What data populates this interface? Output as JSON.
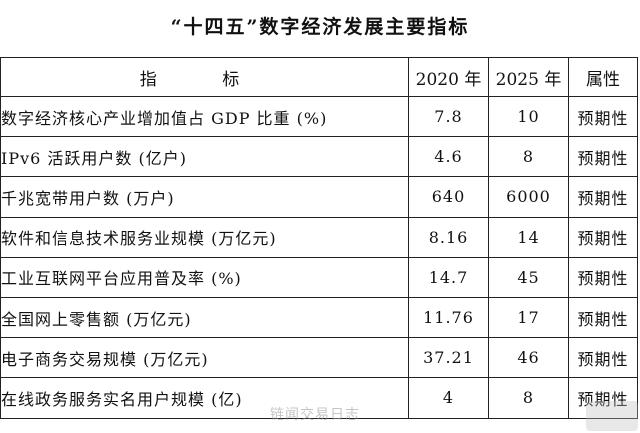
{
  "title": "“十四五”数字经济发展主要指标",
  "table": {
    "headers": {
      "indicator": "指 标",
      "y2020": "2020 年",
      "y2025": "2025 年",
      "attribute": "属性"
    },
    "rows": [
      {
        "name": "数字经济核心产业增加值占 GDP 比重 (%)",
        "v2020": "7.8",
        "v2025": "10",
        "attr": "预期性"
      },
      {
        "name": "IPv6 活跃用户数 (亿户)",
        "v2020": "4.6",
        "v2025": "8",
        "attr": "预期性"
      },
      {
        "name": "千兆宽带用户数 (万户)",
        "v2020": "640",
        "v2025": "6000",
        "attr": "预期性"
      },
      {
        "name": "软件和信息技术服务业规模 (万亿元)",
        "v2020": "8.16",
        "v2025": "14",
        "attr": "预期性"
      },
      {
        "name": "工业互联网平台应用普及率 (%)",
        "v2020": "14.7",
        "v2025": "45",
        "attr": "预期性"
      },
      {
        "name": "全国网上零售额 (万亿元)",
        "v2020": "11.76",
        "v2025": "17",
        "attr": "预期性"
      },
      {
        "name": "电子商务交易规模 (万亿元)",
        "v2020": "37.21",
        "v2025": "46",
        "attr": "预期性"
      },
      {
        "name": "在线政务服务实名用户规模 (亿)",
        "v2020": "4",
        "v2025": "8",
        "attr": "预期性"
      }
    ]
  },
  "watermark": "链闻交易日志"
}
